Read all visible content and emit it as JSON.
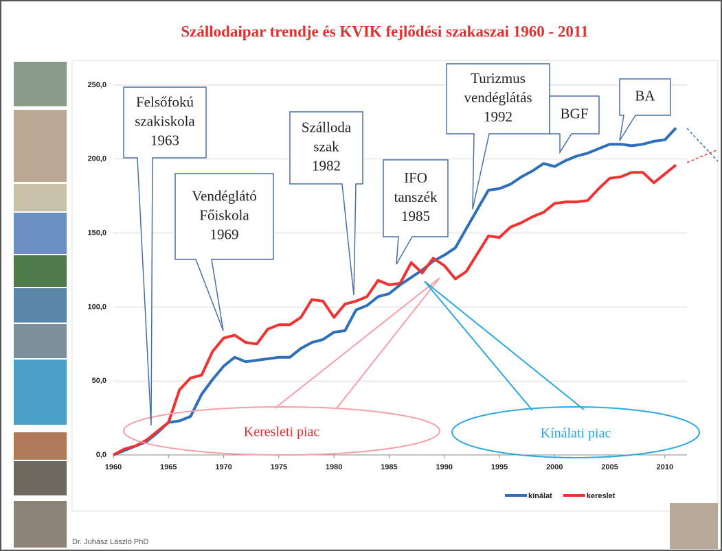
{
  "chart_data": {
    "type": "line",
    "title": "Szállodaipar trendje és KVIK fejlődési szakaszai 1960 - 2011",
    "x": [
      1960,
      1961,
      1962,
      1963,
      1964,
      1965,
      1966,
      1967,
      1968,
      1969,
      1970,
      1971,
      1972,
      1973,
      1974,
      1975,
      1976,
      1977,
      1978,
      1979,
      1980,
      1981,
      1982,
      1983,
      1984,
      1985,
      1986,
      1987,
      1988,
      1989,
      1990,
      1991,
      1992,
      1993,
      1994,
      1995,
      1996,
      1997,
      1998,
      1999,
      2000,
      2001,
      2002,
      2003,
      2004,
      2005,
      2006,
      2007,
      2008,
      2009,
      2010,
      2011
    ],
    "series": [
      {
        "name": "kínálat",
        "color": "#2e6fba",
        "values": [
          0,
          3,
          6,
          9,
          15,
          22,
          23,
          26,
          41,
          51,
          60,
          66,
          63,
          64,
          65,
          66,
          66,
          72,
          76,
          78,
          83,
          84,
          98,
          101,
          107,
          109,
          115,
          120,
          125,
          131,
          135,
          140,
          153,
          166,
          179,
          180,
          183,
          188,
          192,
          197,
          195,
          199,
          202,
          204,
          207,
          210,
          210,
          209,
          210,
          212,
          213,
          221
        ]
      },
      {
        "name": "kereslet",
        "color": "#ee3333",
        "values": [
          0,
          4,
          6,
          10,
          16,
          22,
          44,
          52,
          54,
          70,
          79,
          81,
          76,
          75,
          85,
          88,
          88,
          93,
          105,
          104,
          93,
          102,
          104,
          107,
          118,
          115,
          116,
          130,
          123,
          133,
          128,
          119,
          124,
          136,
          148,
          147,
          154,
          157,
          161,
          164,
          170,
          171,
          171,
          172,
          180,
          187,
          188,
          191,
          191,
          184,
          190,
          196
        ]
      }
    ],
    "xlim": [
      1960,
      2012
    ],
    "xticks": [
      1960,
      1965,
      1970,
      1975,
      1980,
      1985,
      1990,
      1995,
      2000,
      2005,
      2010
    ],
    "ylim": [
      0,
      250
    ],
    "yticks": [
      {
        "value": 0,
        "label": "0,0"
      },
      {
        "value": 50,
        "label": "50,0"
      },
      {
        "value": 100,
        "label": "100,0"
      },
      {
        "value": 150,
        "label": "150,0"
      },
      {
        "value": 200,
        "label": "200,0"
      },
      {
        "value": 250,
        "label": "250,0"
      }
    ],
    "grid": true,
    "legend": "bottom",
    "annotations": [
      {
        "lines": [
          "Felsőfokú",
          "szakiskola",
          "1963"
        ]
      },
      {
        "lines": [
          "Vendéglátó",
          "Főiskola",
          "1969"
        ]
      },
      {
        "lines": [
          "Szálloda",
          "szak",
          "1982"
        ]
      },
      {
        "lines": [
          "IFO",
          "tanszék",
          "1985"
        ]
      },
      {
        "lines": [
          "Turizmus",
          "vendéglátás",
          "1992"
        ]
      },
      {
        "lines": [
          "BGF"
        ]
      },
      {
        "lines": [
          "BA"
        ]
      }
    ],
    "regions": [
      "Keresleti piac",
      "Kínálati piac"
    ],
    "author": "Dr. Juhász László PhD"
  }
}
